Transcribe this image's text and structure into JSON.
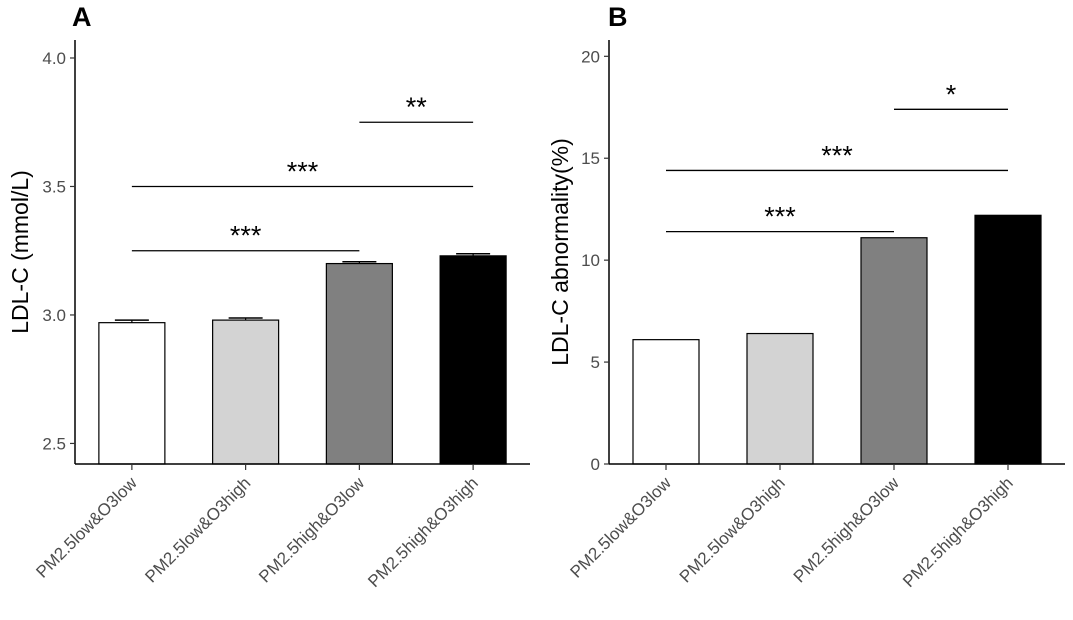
{
  "chart_data": [
    {
      "type": "bar",
      "panel_label": "A",
      "categories": [
        "PM2.5low&O3low",
        "PM2.5low&O3high",
        "PM2.5high&O3low",
        "PM2.5high&O3high"
      ],
      "values": [
        2.97,
        2.98,
        3.2,
        3.23
      ],
      "errors": [
        0.01,
        0.008,
        0.007,
        0.008
      ],
      "bar_colors": [
        "#ffffff",
        "#d3d3d3",
        "#808080",
        "#000000"
      ],
      "ylabel": "LDL-C (mmol/L)",
      "xlabel": "",
      "ylim": [
        2.42,
        4.07
      ],
      "yticks": [
        "2.5",
        "3.0",
        "3.5",
        "4.0"
      ],
      "significance": [
        {
          "from": 0,
          "to": 2,
          "y": 3.25,
          "label": "***"
        },
        {
          "from": 0,
          "to": 3,
          "y": 3.5,
          "label": "***"
        },
        {
          "from": 2,
          "to": 3,
          "y": 3.75,
          "label": "**"
        }
      ]
    },
    {
      "type": "bar",
      "panel_label": "B",
      "categories": [
        "PM2.5low&O3low",
        "PM2.5low&O3high",
        "PM2.5high&O3low",
        "PM2.5high&O3high"
      ],
      "values": [
        6.1,
        6.4,
        11.1,
        12.2
      ],
      "bar_colors": [
        "#ffffff",
        "#d3d3d3",
        "#808080",
        "#000000"
      ],
      "ylabel": "LDL-C abnormality(%)",
      "xlabel": "",
      "ylim": [
        0,
        20.8
      ],
      "yticks": [
        "0",
        "5",
        "10",
        "15",
        "20"
      ],
      "significance": [
        {
          "from": 0,
          "to": 2,
          "y": 11.4,
          "label": "***"
        },
        {
          "from": 0,
          "to": 3,
          "y": 14.4,
          "label": "***"
        },
        {
          "from": 2,
          "to": 3,
          "y": 17.4,
          "label": "*"
        }
      ]
    }
  ]
}
